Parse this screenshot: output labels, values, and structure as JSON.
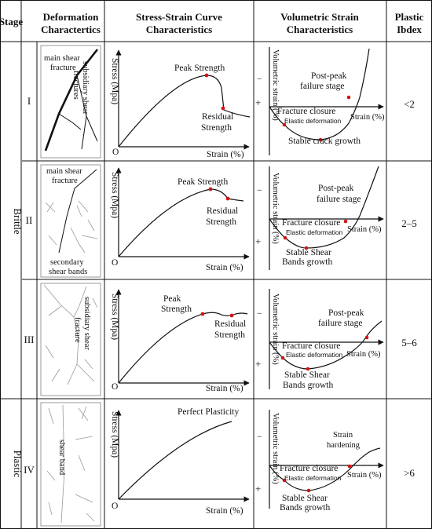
{
  "header": {
    "stage": "Stage",
    "deformation": [
      "Deformation",
      "Charactertics"
    ],
    "stress_strain": [
      "Stress-Strain Curve",
      "Characteristics"
    ],
    "volumetric": [
      "Volumetric Strain",
      "Characteristics"
    ],
    "plastic_index": [
      "Plastic",
      "Ibdex"
    ]
  },
  "groups": {
    "brittle": "Brittle",
    "plastic": "Plastic"
  },
  "common": {
    "stress_axis": "Stress (Mpa)",
    "strain_axis": "Strain (%)",
    "origin": "O",
    "vol_axis": "Volumetric strain (%)",
    "minus": "−",
    "plus": "+",
    "vol_strain": "Strain (%)",
    "fracture_closure": "Fracture closure",
    "elastic_deformation": "Elastic deformation"
  },
  "rows": [
    {
      "stage": "I",
      "deform_labels": [
        "main shear",
        "fracture",
        "subsidiary shear",
        "fractures"
      ],
      "stress_labels": [
        "Peak Strength",
        "Residual",
        "Strength"
      ],
      "vol_labels": [
        "Post-peak",
        "failure stage",
        "Stable crack growth"
      ],
      "index": "<2"
    },
    {
      "stage": "II",
      "deform_labels": [
        "main shear",
        "fracture",
        "secondary",
        "shear bands"
      ],
      "stress_labels": [
        "Peak Strength",
        "Residual",
        "Strength"
      ],
      "vol_labels": [
        "Post-peak",
        "failure stage",
        "Stable Shear",
        "Bands growth"
      ],
      "index": "2–5"
    },
    {
      "stage": "III",
      "deform_labels": [
        "subsidiary shear",
        "fracture"
      ],
      "stress_labels": [
        "Peak",
        "Strength",
        "Residual",
        "Strength"
      ],
      "vol_labels": [
        "Post-peak",
        "failure stage",
        "Stable Shear",
        "Bands growth"
      ],
      "index": "5–6"
    },
    {
      "stage": "IV",
      "deform_labels": [
        "shear band"
      ],
      "stress_labels": [
        "Perfect Plasticity"
      ],
      "vol_labels": [
        "Strain",
        "hardening",
        "Stable Shear",
        "Bands growth"
      ],
      "index": ">6"
    }
  ]
}
